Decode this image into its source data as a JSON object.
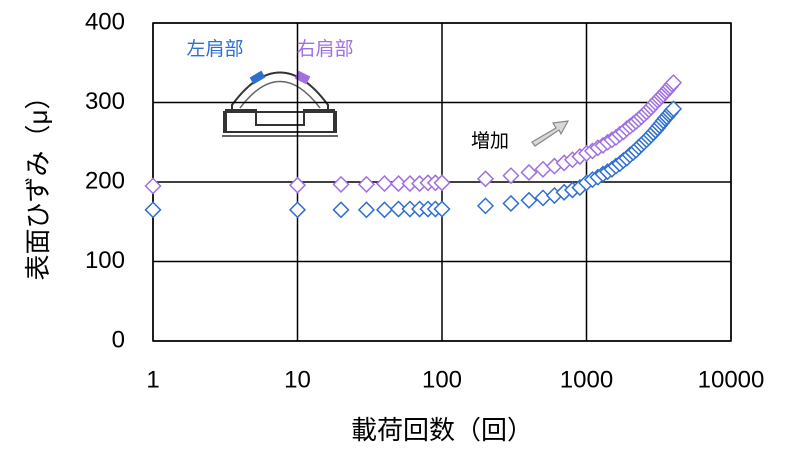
{
  "chart_data": {
    "type": "scatter",
    "x_label": "載荷回数（回）",
    "y_label": "表面ひずみ（μ）",
    "x": [
      1,
      10,
      20,
      30,
      40,
      50,
      60,
      70,
      80,
      90,
      100,
      200,
      300,
      400,
      500,
      600,
      700,
      800,
      900,
      1000,
      1100,
      1200,
      1300,
      1400,
      1500,
      1600,
      1700,
      1800,
      1900,
      2000,
      2100,
      2200,
      2300,
      2400,
      2500,
      2600,
      2700,
      2800,
      2900,
      3000,
      3100,
      3200,
      3300,
      3400,
      3500,
      3600,
      3700,
      3800,
      3900,
      4000
    ],
    "series": [
      {
        "name": "左肩部",
        "color": "#2f6fd0",
        "values": [
          165,
          165,
          165,
          165,
          165,
          166,
          166,
          166,
          166,
          166,
          166,
          170,
          173,
          177,
          180,
          183,
          187,
          190,
          193,
          199,
          203,
          206,
          210,
          213,
          216,
          220,
          223,
          227,
          230,
          234,
          237,
          240,
          244,
          247,
          250,
          253,
          256,
          259,
          262,
          265,
          268,
          271,
          274,
          277,
          280,
          282,
          285,
          287,
          290,
          292
        ]
      },
      {
        "name": "右肩部",
        "color": "#a070e0",
        "values": [
          195,
          196,
          197,
          197,
          198,
          198,
          198,
          198,
          199,
          199,
          199,
          204,
          208,
          212,
          216,
          220,
          224,
          228,
          232,
          236,
          239,
          243,
          246,
          250,
          253,
          256,
          260,
          263,
          267,
          270,
          273,
          276,
          279,
          282,
          285,
          288,
          291,
          294,
          297,
          300,
          303,
          305,
          308,
          310,
          313,
          315,
          318,
          320,
          323,
          325
        ]
      }
    ],
    "annotation": "増加",
    "xlim": [
      1,
      10000
    ],
    "xticks": [
      1,
      10,
      100,
      1000,
      10000
    ],
    "x_scale": "log",
    "ylim": [
      0,
      400
    ],
    "yticks": [
      0,
      100,
      200,
      300,
      400
    ],
    "grid": true
  }
}
